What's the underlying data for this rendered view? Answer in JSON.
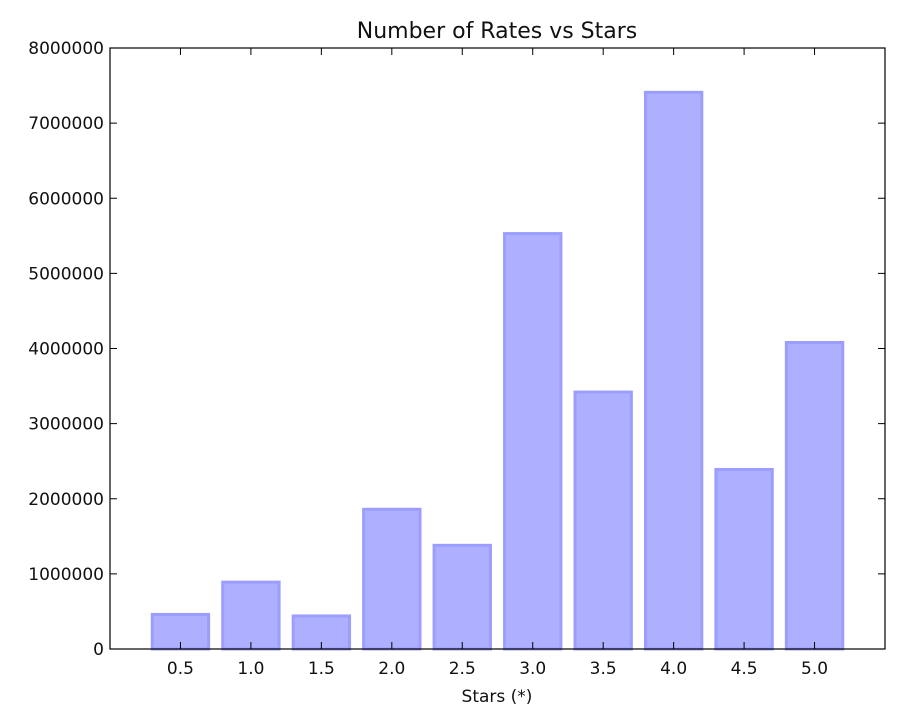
{
  "chart_data": {
    "type": "bar",
    "title": "Number of Rates vs Stars",
    "xlabel": "Stars (*)",
    "ylabel": "",
    "categories": [
      "0.5",
      "1.0",
      "1.5",
      "2.0",
      "2.5",
      "3.0",
      "3.5",
      "4.0",
      "4.5",
      "5.0"
    ],
    "values": [
      460000,
      890000,
      440000,
      1860000,
      1380000,
      5530000,
      3420000,
      7410000,
      2390000,
      4080000
    ],
    "ylim": [
      0,
      8000000
    ],
    "yticks": [
      "0",
      "1000000",
      "2000000",
      "3000000",
      "4000000",
      "5000000",
      "6000000",
      "7000000",
      "8000000"
    ],
    "grid": false,
    "colors": {
      "bar_fill": "#aeb0ff",
      "bar_edge": "#9c9eff",
      "axis": "#000000"
    }
  }
}
